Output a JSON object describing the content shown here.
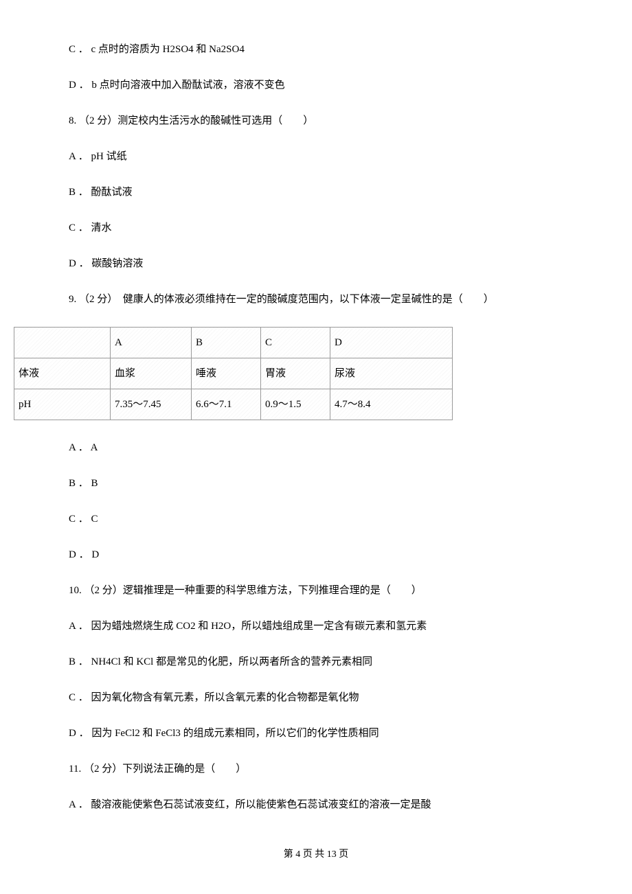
{
  "lines": {
    "c7": "C ． c 点时的溶质为 H2SO4 和 Na2SO4",
    "d7": "D ． b 点时向溶液中加入酚酞试液，溶液不变色",
    "q8": "8. （2 分）测定校内生活污水的酸碱性可选用（　　）",
    "a8": "A ． pH 试纸",
    "b8": "B ． 酚酞试液",
    "c8": "C ． 清水",
    "d8": "D ． 碳酸钠溶液",
    "q9": "9. （2 分）　健康人的体液必须维持在一定的酸碱度范围内，以下体液一定呈碱性的是（　　）",
    "a9": "A ． A",
    "b9": "B ． B",
    "c9": "C ． C",
    "d9": "D ． D",
    "q10": "10. （2 分）逻辑推理是一种重要的科学思维方法，下列推理合理的是（　　）",
    "a10": "A ． 因为蜡烛燃烧生成 CO2 和 H2O，所以蜡烛组成里一定含有碳元素和氢元素",
    "b10": "B ． NH4Cl 和 KCl 都是常见的化肥，所以两者所含的营养元素相同",
    "c10": "C ． 因为氧化物含有氧元素，所以含氧元素的化合物都是氧化物",
    "d10": "D ． 因为 FeCl2 和 FeCl3 的组成元素相同，所以它们的化学性质相同",
    "q11": "11. （2 分）下列说法正确的是（　　）",
    "a11": "A ． 酸溶液能使紫色石蕊试液变红，所以能使紫色石蕊试液变红的溶液一定是酸"
  },
  "table": {
    "rows": [
      [
        "",
        "A",
        "B",
        "C",
        "D"
      ],
      [
        "体液",
        "血浆",
        "唾液",
        "胃液",
        "尿液"
      ],
      [
        "pH",
        "7.35～7.45",
        "6.6～7.1",
        "0.9～1.5",
        "4.7～8.4"
      ]
    ]
  },
  "footer": "第 4 页 共 13 页"
}
